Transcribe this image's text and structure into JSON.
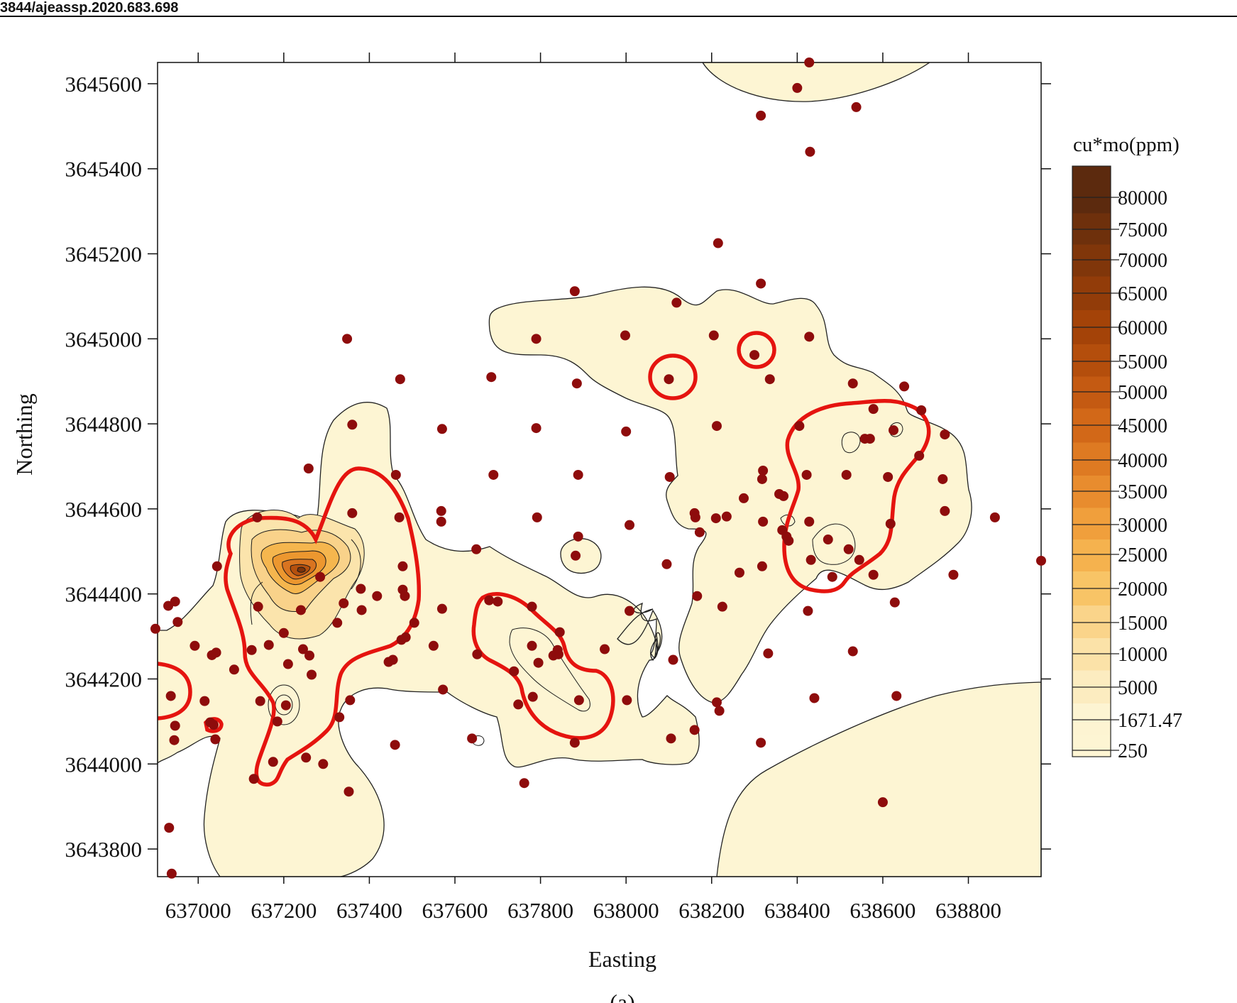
{
  "header": {
    "doi_fragment": "3844/ajeassp.2020.683.698"
  },
  "chart_data": {
    "type": "contour",
    "title": "",
    "xlabel": "Easting",
    "ylabel": "Northing",
    "xlim": [
      636905,
      638970
    ],
    "ylim": [
      3643735,
      3645650
    ],
    "x_ticks": [
      637000,
      637200,
      637400,
      637600,
      637800,
      638000,
      638200,
      638400,
      638600,
      638800
    ],
    "x_tick_labels": [
      "637000",
      "637200",
      "637400",
      "637600",
      "637800",
      "638000",
      "638200",
      "638400",
      "638600",
      "638800"
    ],
    "y_ticks": [
      3643800,
      3644000,
      3644200,
      3644400,
      3644600,
      3644800,
      3645000,
      3645200,
      3645400,
      3645600
    ],
    "y_tick_labels": [
      "3643800",
      "3644000",
      "3644200",
      "3644400",
      "3644600",
      "3644800",
      "3645000",
      "3645200",
      "3645400",
      "3645600"
    ],
    "colorbar": {
      "title": "cu*mo(ppm)",
      "levels": [
        "80000",
        "75000",
        "70000",
        "65000",
        "60000",
        "55000",
        "50000",
        "45000",
        "40000",
        "35000",
        "30000",
        "25000",
        "20000",
        "15000",
        "10000",
        "5000",
        "1671.47",
        "250"
      ],
      "colors": [
        "#5c2a0e",
        "#6e300c",
        "#80360a",
        "#923c09",
        "#a44308",
        "#b44e0c",
        "#c45a12",
        "#d26818",
        "#de7a22",
        "#e88c2e",
        "#f09f3c",
        "#f5b24e",
        "#f8c466",
        "#fad48a",
        "#fbe2a8",
        "#fcecc0",
        "#fdf4d2",
        "#fdf5d3"
      ]
    },
    "threshold_contour": {
      "level": "1671.47",
      "color": "#e5140f"
    },
    "background_contour": {
      "level": "250",
      "fill": "#fdf5d3"
    },
    "sample_color": "#8e0c0c",
    "samples": [
      [
        636900,
        3644318
      ],
      [
        636930,
        3644372
      ],
      [
        636946,
        3644382
      ],
      [
        636952,
        3644334
      ],
      [
        636936,
        3644160
      ],
      [
        636946,
        3644090
      ],
      [
        636944,
        3644056
      ],
      [
        636932,
        3643850
      ],
      [
        636938,
        3643742
      ],
      [
        636992,
        3644278
      ],
      [
        637032,
        3644256
      ],
      [
        637042,
        3644262
      ],
      [
        637044,
        3644465
      ],
      [
        637015,
        3644148
      ],
      [
        637028,
        3644098
      ],
      [
        637036,
        3644092
      ],
      [
        637040,
        3644058
      ],
      [
        637084,
        3644222
      ],
      [
        637125,
        3644268
      ],
      [
        637138,
        3644580
      ],
      [
        637140,
        3644370
      ],
      [
        637145,
        3644148
      ],
      [
        637130,
        3643965
      ],
      [
        637165,
        3644280
      ],
      [
        637175,
        3644005
      ],
      [
        637185,
        3644100
      ],
      [
        637200,
        3644308
      ],
      [
        637205,
        3644138
      ],
      [
        637210,
        3644235
      ],
      [
        637240,
        3644362
      ],
      [
        637245,
        3644270
      ],
      [
        637252,
        3644015
      ],
      [
        637260,
        3644255
      ],
      [
        637265,
        3644210
      ],
      [
        637258,
        3644695
      ],
      [
        637285,
        3644440
      ],
      [
        637292,
        3644000
      ],
      [
        637325,
        3644332
      ],
      [
        637330,
        3644110
      ],
      [
        637340,
        3644378
      ],
      [
        637348,
        3645000
      ],
      [
        637355,
        3644150
      ],
      [
        637352,
        3643935
      ],
      [
        637360,
        3644798
      ],
      [
        637360,
        3644590
      ],
      [
        637380,
        3644412
      ],
      [
        637382,
        3644362
      ],
      [
        637418,
        3644395
      ],
      [
        637445,
        3644240
      ],
      [
        637455,
        3644245
      ],
      [
        637462,
        3644680
      ],
      [
        637470,
        3644580
      ],
      [
        637478,
        3644465
      ],
      [
        637478,
        3644410
      ],
      [
        637483,
        3644395
      ],
      [
        637472,
        3644905
      ],
      [
        637460,
        3644045
      ],
      [
        637475,
        3644292
      ],
      [
        637485,
        3644298
      ],
      [
        637505,
        3644332
      ],
      [
        637550,
        3644278
      ],
      [
        637570,
        3644788
      ],
      [
        637568,
        3644595
      ],
      [
        637568,
        3644570
      ],
      [
        637570,
        3644365
      ],
      [
        637572,
        3644175
      ],
      [
        637640,
        3644060
      ],
      [
        637650,
        3644505
      ],
      [
        637652,
        3644258
      ],
      [
        637680,
        3644385
      ],
      [
        637685,
        3644910
      ],
      [
        637690,
        3644680
      ],
      [
        637700,
        3644382
      ],
      [
        637738,
        3644218
      ],
      [
        637748,
        3644140
      ],
      [
        637762,
        3643955
      ],
      [
        637780,
        3644370
      ],
      [
        637780,
        3644278
      ],
      [
        637782,
        3644158
      ],
      [
        637790,
        3645000
      ],
      [
        637790,
        3644790
      ],
      [
        637792,
        3644580
      ],
      [
        637795,
        3644238
      ],
      [
        637830,
        3644255
      ],
      [
        637840,
        3644268
      ],
      [
        637842,
        3644258
      ],
      [
        637845,
        3644310
      ],
      [
        637880,
        3645112
      ],
      [
        637885,
        3644895
      ],
      [
        637888,
        3644680
      ],
      [
        637888,
        3644535
      ],
      [
        637882,
        3644490
      ],
      [
        637890,
        3644150
      ],
      [
        637880,
        3644050
      ],
      [
        637950,
        3644270
      ],
      [
        637998,
        3645008
      ],
      [
        638000,
        3644782
      ],
      [
        638008,
        3644562
      ],
      [
        638008,
        3644360
      ],
      [
        638002,
        3644150
      ],
      [
        638095,
        3644470
      ],
      [
        638100,
        3644905
      ],
      [
        638105,
        3644060
      ],
      [
        638102,
        3644675
      ],
      [
        638110,
        3644245
      ],
      [
        638118,
        3645085
      ],
      [
        638160,
        3644590
      ],
      [
        638162,
        3644580
      ],
      [
        638166,
        3644395
      ],
      [
        638160,
        3644080
      ],
      [
        638172,
        3644545
      ],
      [
        638205,
        3645008
      ],
      [
        638210,
        3644578
      ],
      [
        638212,
        3644795
      ],
      [
        638215,
        3645225
      ],
      [
        638212,
        3644145
      ],
      [
        638218,
        3644125
      ],
      [
        638225,
        3644370
      ],
      [
        638235,
        3644582
      ],
      [
        638265,
        3644450
      ],
      [
        638275,
        3644625
      ],
      [
        638300,
        3644962
      ],
      [
        638315,
        3645525
      ],
      [
        638315,
        3645130
      ],
      [
        638318,
        3644670
      ],
      [
        638320,
        3644690
      ],
      [
        638320,
        3644570
      ],
      [
        638318,
        3644465
      ],
      [
        638315,
        3644050
      ],
      [
        638332,
        3644260
      ],
      [
        638336,
        3644905
      ],
      [
        638358,
        3644635
      ],
      [
        638365,
        3644550
      ],
      [
        638368,
        3644630
      ],
      [
        638375,
        3644535
      ],
      [
        638380,
        3644525
      ],
      [
        638400,
        3645590
      ],
      [
        638405,
        3644795
      ],
      [
        638422,
        3644680
      ],
      [
        638425,
        3644360
      ],
      [
        638428,
        3645005
      ],
      [
        638430,
        3645440
      ],
      [
        638428,
        3644570
      ],
      [
        638432,
        3644480
      ],
      [
        638428,
        3645650
      ],
      [
        638440,
        3644155
      ],
      [
        638472,
        3644528
      ],
      [
        638482,
        3644440
      ],
      [
        638515,
        3644680
      ],
      [
        638520,
        3644505
      ],
      [
        638530,
        3644895
      ],
      [
        638530,
        3644265
      ],
      [
        638538,
        3645545
      ],
      [
        638545,
        3644480
      ],
      [
        638558,
        3644765
      ],
      [
        638570,
        3644765
      ],
      [
        638578,
        3644445
      ],
      [
        638578,
        3644835
      ],
      [
        638600,
        3643910
      ],
      [
        638612,
        3644675
      ],
      [
        638618,
        3644565
      ],
      [
        638625,
        3644785
      ],
      [
        638628,
        3644380
      ],
      [
        638632,
        3644160
      ],
      [
        638650,
        3644888
      ],
      [
        638685,
        3644725
      ],
      [
        638690,
        3644832
      ],
      [
        638740,
        3644670
      ],
      [
        638745,
        3644775
      ],
      [
        638745,
        3644595
      ],
      [
        638765,
        3644445
      ],
      [
        638862,
        3644580
      ],
      [
        638970,
        3644478
      ]
    ]
  },
  "caption": "(a)"
}
